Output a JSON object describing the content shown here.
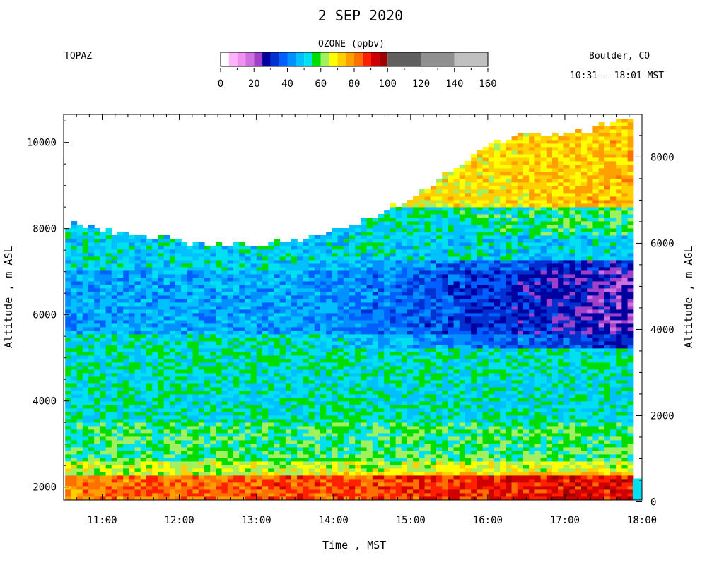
{
  "header": {
    "title": "2 SEP 2020",
    "instrument": "TOPAZ",
    "location": "Boulder, CO",
    "time_range": "10:31 - 18:01 MST"
  },
  "colorbar": {
    "title": "OZONE (ppbv)",
    "ticks": [
      "0",
      "20",
      "40",
      "60",
      "80",
      "100",
      "120",
      "140",
      "160"
    ],
    "min": 0,
    "max": 160,
    "bins": [
      {
        "from": 0,
        "to": 5,
        "color": "#ffffff"
      },
      {
        "from": 5,
        "to": 10,
        "color": "#ffb3ff"
      },
      {
        "from": 10,
        "to": 15,
        "color": "#f090f0"
      },
      {
        "from": 15,
        "to": 20,
        "color": "#d070e0"
      },
      {
        "from": 20,
        "to": 25,
        "color": "#a040c8"
      },
      {
        "from": 25,
        "to": 30,
        "color": "#0000a0"
      },
      {
        "from": 30,
        "to": 35,
        "color": "#0030d0"
      },
      {
        "from": 35,
        "to": 40,
        "color": "#0060ff"
      },
      {
        "from": 40,
        "to": 45,
        "color": "#0090ff"
      },
      {
        "from": 45,
        "to": 50,
        "color": "#00c0ff"
      },
      {
        "from": 50,
        "to": 55,
        "color": "#00e0f0"
      },
      {
        "from": 55,
        "to": 60,
        "color": "#00dd00"
      },
      {
        "from": 60,
        "to": 65,
        "color": "#a0f060"
      },
      {
        "from": 65,
        "to": 70,
        "color": "#ffff00"
      },
      {
        "from": 70,
        "to": 75,
        "color": "#ffd000"
      },
      {
        "from": 75,
        "to": 80,
        "color": "#ffa000"
      },
      {
        "from": 80,
        "to": 85,
        "color": "#ff7000"
      },
      {
        "from": 85,
        "to": 90,
        "color": "#ff2000"
      },
      {
        "from": 90,
        "to": 95,
        "color": "#d00000"
      },
      {
        "from": 95,
        "to": 100,
        "color": "#a00000"
      },
      {
        "from": 100,
        "to": 120,
        "color": "#606060"
      },
      {
        "from": 120,
        "to": 140,
        "color": "#909090"
      },
      {
        "from": 140,
        "to": 160,
        "color": "#c0c0c0"
      }
    ]
  },
  "chart_data": {
    "type": "heatmap",
    "title": "2 SEP 2020",
    "xlabel": "Time , MST",
    "ylabel_left": "Altitude , m ASL",
    "ylabel_right": "Altitude , m AGL",
    "x_ticks": [
      "11:00",
      "12:00",
      "13:00",
      "14:00",
      "15:00",
      "16:00",
      "17:00",
      "18:00"
    ],
    "x_range_hours": [
      10.5,
      18.0
    ],
    "y_left_range_m": [
      1700,
      10650
    ],
    "y_left_ticks": [
      "2000",
      "4000",
      "6000",
      "8000",
      "10000"
    ],
    "y_right_ticks": [
      "0",
      "2000",
      "4000",
      "6000",
      "8000"
    ],
    "surface_altitude_m": 1660,
    "top_altitude_profile_m": [
      [
        10.52,
        8050
      ],
      [
        11.0,
        7900
      ],
      [
        11.5,
        7800
      ],
      [
        12.0,
        7700
      ],
      [
        12.5,
        7550
      ],
      [
        13.0,
        7600
      ],
      [
        13.5,
        7700
      ],
      [
        14.0,
        7950
      ],
      [
        14.5,
        8250
      ],
      [
        15.0,
        8700
      ],
      [
        15.5,
        9300
      ],
      [
        16.0,
        9900
      ],
      [
        16.5,
        10200
      ],
      [
        17.0,
        10100
      ],
      [
        17.5,
        10400
      ],
      [
        17.85,
        10500
      ]
    ],
    "ozone_layers_ppbv": [
      {
        "from_m": 1700,
        "to_m": 2200,
        "ozone": 82
      },
      {
        "from_m": 2200,
        "to_m": 2600,
        "ozone": 65
      },
      {
        "from_m": 2600,
        "to_m": 3500,
        "ozone": 57
      },
      {
        "from_m": 3500,
        "to_m": 4500,
        "ozone": 52
      },
      {
        "from_m": 4500,
        "to_m": 5500,
        "ozone": 53
      },
      {
        "from_m": 5500,
        "to_m": 7000,
        "ozone": 45
      },
      {
        "from_m": 7000,
        "to_m": 8500,
        "ozone": 50
      },
      {
        "from_m": 8500,
        "to_m": 10500,
        "ozone": 66
      }
    ]
  }
}
